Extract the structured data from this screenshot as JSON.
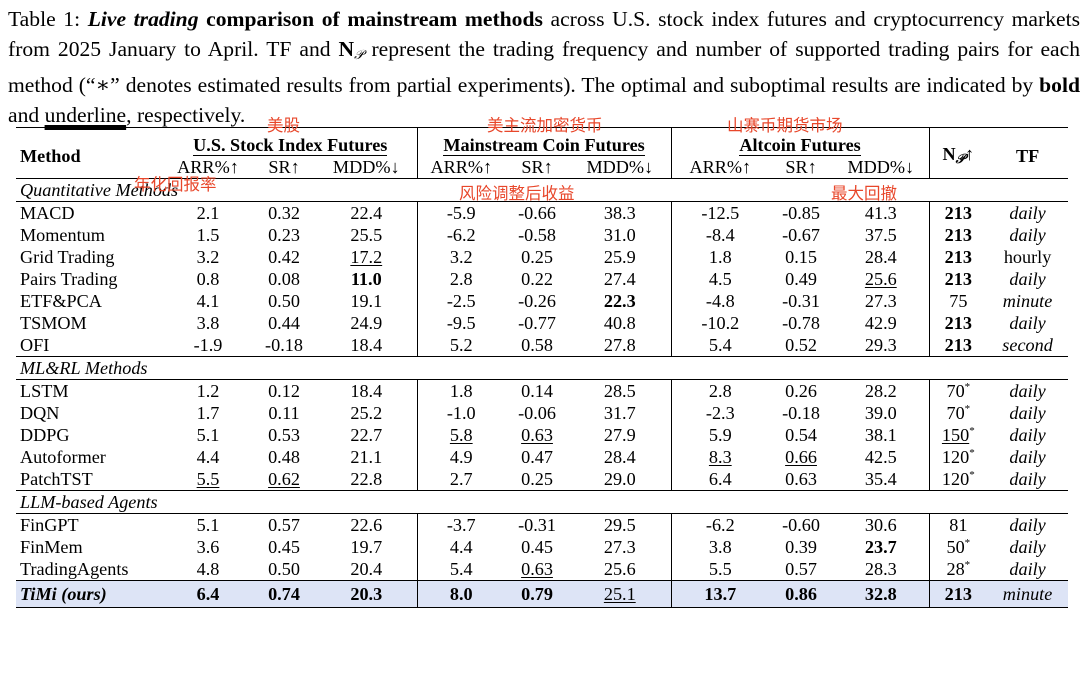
{
  "caption": {
    "label": "Table 1:",
    "title_italic": "Live trading",
    "title_bold": "comparison of mainstream methods",
    "text_1": "across U.S. stock index futures and cryptocurrency markets from 2025 January to April. TF and",
    "np_symbol": "N",
    "np_subscript": "𝒫",
    "text_2": "represent the trading frequency and number of supported trading pairs for each method (“∗” denotes estimated results from partial experiments). The optimal and suboptimal results are indicated by",
    "bold_word": "bold",
    "and_word": "and",
    "underline_word": "underline",
    "text_end": ", respectively."
  },
  "header": {
    "method": "Method",
    "groups": [
      "U.S. Stock Index Futures",
      "Mainstream Coin Futures",
      "Altcoin Futures"
    ],
    "metrics": [
      "ARR%↑",
      "SR↑",
      "MDD%↓"
    ],
    "np_label": "N",
    "np_arrow": "↑",
    "tf": "TF"
  },
  "annotations": {
    "us_stock": "美股",
    "mainstream_coin": "美主流加密货币",
    "altcoin": "山寨币期货市场",
    "arr": "年化回报率",
    "sr": "风险调整后收益",
    "mdd": "最大回撤"
  },
  "sections": [
    {
      "title": "Quantitative Methods",
      "rows": [
        {
          "method": "MACD",
          "us": [
            "2.1",
            "0.32",
            "22.4"
          ],
          "mc": [
            "-5.9",
            "-0.66",
            "38.3"
          ],
          "alt": [
            "-12.5",
            "-0.85",
            "41.3"
          ],
          "np": "213",
          "tf": "daily"
        },
        {
          "method": "Momentum",
          "us": [
            "1.5",
            "0.23",
            "25.5"
          ],
          "mc": [
            "-6.2",
            "-0.58",
            "31.0"
          ],
          "alt": [
            "-8.4",
            "-0.67",
            "37.5"
          ],
          "np": "213",
          "tf": "daily"
        },
        {
          "method": "Grid Trading",
          "us": [
            "3.2",
            "0.42",
            "17.2"
          ],
          "mc": [
            "3.2",
            "0.25",
            "25.9"
          ],
          "alt": [
            "1.8",
            "0.15",
            "28.4"
          ],
          "np": "213",
          "tf": "hourly"
        },
        {
          "method": "Pairs Trading",
          "us": [
            "0.8",
            "0.08",
            "11.0"
          ],
          "mc": [
            "2.8",
            "0.22",
            "27.4"
          ],
          "alt": [
            "4.5",
            "0.49",
            "25.6"
          ],
          "np": "213",
          "tf": "daily"
        },
        {
          "method": "ETF&PCA",
          "us": [
            "4.1",
            "0.50",
            "19.1"
          ],
          "mc": [
            "-2.5",
            "-0.26",
            "22.3"
          ],
          "alt": [
            "-4.8",
            "-0.31",
            "27.3"
          ],
          "np": "75",
          "tf": "minute"
        },
        {
          "method": "TSMOM",
          "us": [
            "3.8",
            "0.44",
            "24.9"
          ],
          "mc": [
            "-9.5",
            "-0.77",
            "40.8"
          ],
          "alt": [
            "-10.2",
            "-0.78",
            "42.9"
          ],
          "np": "213",
          "tf": "daily"
        },
        {
          "method": "OFI",
          "us": [
            "-1.9",
            "-0.18",
            "18.4"
          ],
          "mc": [
            "5.2",
            "0.58",
            "27.8"
          ],
          "alt": [
            "5.4",
            "0.52",
            "29.3"
          ],
          "np": "213",
          "tf": "second"
        }
      ]
    },
    {
      "title": "ML&RL Methods",
      "rows": [
        {
          "method": "LSTM",
          "us": [
            "1.2",
            "0.12",
            "18.4"
          ],
          "mc": [
            "1.8",
            "0.14",
            "28.5"
          ],
          "alt": [
            "2.8",
            "0.26",
            "28.2"
          ],
          "np": "70",
          "np_star": "*",
          "tf": "daily"
        },
        {
          "method": "DQN",
          "us": [
            "1.7",
            "0.11",
            "25.2"
          ],
          "mc": [
            "-1.0",
            "-0.06",
            "31.7"
          ],
          "alt": [
            "-2.3",
            "-0.18",
            "39.0"
          ],
          "np": "70",
          "np_star": "*",
          "tf": "daily"
        },
        {
          "method": "DDPG",
          "us": [
            "5.1",
            "0.53",
            "22.7"
          ],
          "mc": [
            "5.8",
            "0.63",
            "27.9"
          ],
          "alt": [
            "5.9",
            "0.54",
            "38.1"
          ],
          "np": "150",
          "np_star": "*",
          "tf": "daily"
        },
        {
          "method": "Autoformer",
          "us": [
            "4.4",
            "0.48",
            "21.1"
          ],
          "mc": [
            "4.9",
            "0.47",
            "28.4"
          ],
          "alt": [
            "8.3",
            "0.66",
            "42.5"
          ],
          "np": "120",
          "np_star": "*",
          "tf": "daily"
        },
        {
          "method": "PatchTST",
          "us": [
            "5.5",
            "0.62",
            "22.8"
          ],
          "mc": [
            "2.7",
            "0.25",
            "29.0"
          ],
          "alt": [
            "6.4",
            "0.63",
            "35.4"
          ],
          "np": "120",
          "np_star": "*",
          "tf": "daily"
        }
      ]
    },
    {
      "title": "LLM-based Agents",
      "rows": [
        {
          "method": "FinGPT",
          "us": [
            "5.1",
            "0.57",
            "22.6"
          ],
          "mc": [
            "-3.7",
            "-0.31",
            "29.5"
          ],
          "alt": [
            "-6.2",
            "-0.60",
            "30.6"
          ],
          "np": "81",
          "tf": "daily"
        },
        {
          "method": "FinMem",
          "us": [
            "3.6",
            "0.45",
            "19.7"
          ],
          "mc": [
            "4.4",
            "0.45",
            "27.3"
          ],
          "alt": [
            "3.8",
            "0.39",
            "23.7"
          ],
          "np": "50",
          "np_star": "*",
          "tf": "daily"
        },
        {
          "method": "TradingAgents",
          "us": [
            "4.8",
            "0.50",
            "20.4"
          ],
          "mc": [
            "5.4",
            "0.63",
            "25.6"
          ],
          "alt": [
            "5.5",
            "0.57",
            "28.3"
          ],
          "np": "28",
          "np_star": "*",
          "tf": "daily"
        }
      ]
    }
  ],
  "ours": {
    "method": "TiMi (ours)",
    "us": [
      "6.4",
      "0.74",
      "20.3"
    ],
    "mc": [
      "8.0",
      "0.79",
      "25.1"
    ],
    "alt": [
      "13.7",
      "0.86",
      "32.8"
    ],
    "np": "213",
    "tf": "minute"
  },
  "emphasis": {
    "bold": [
      "Pairs Trading.us.2",
      "ETF&PCA.mc.2",
      "FinMem.alt.2",
      "np:213",
      "TiMi"
    ],
    "underline": [
      "Grid Trading.us.2",
      "Pairs Trading.alt.2",
      "DDPG.mc.0",
      "DDPG.mc.1",
      "DDPG.np",
      "Autoformer.alt.0",
      "Autoformer.alt.1",
      "PatchTST.us.0",
      "PatchTST.us.1",
      "TradingAgents.mc.1",
      "TiMi.mc.2"
    ]
  },
  "colors": {
    "annotation": "#e8472b",
    "highlight_row": "#dde4f6"
  }
}
